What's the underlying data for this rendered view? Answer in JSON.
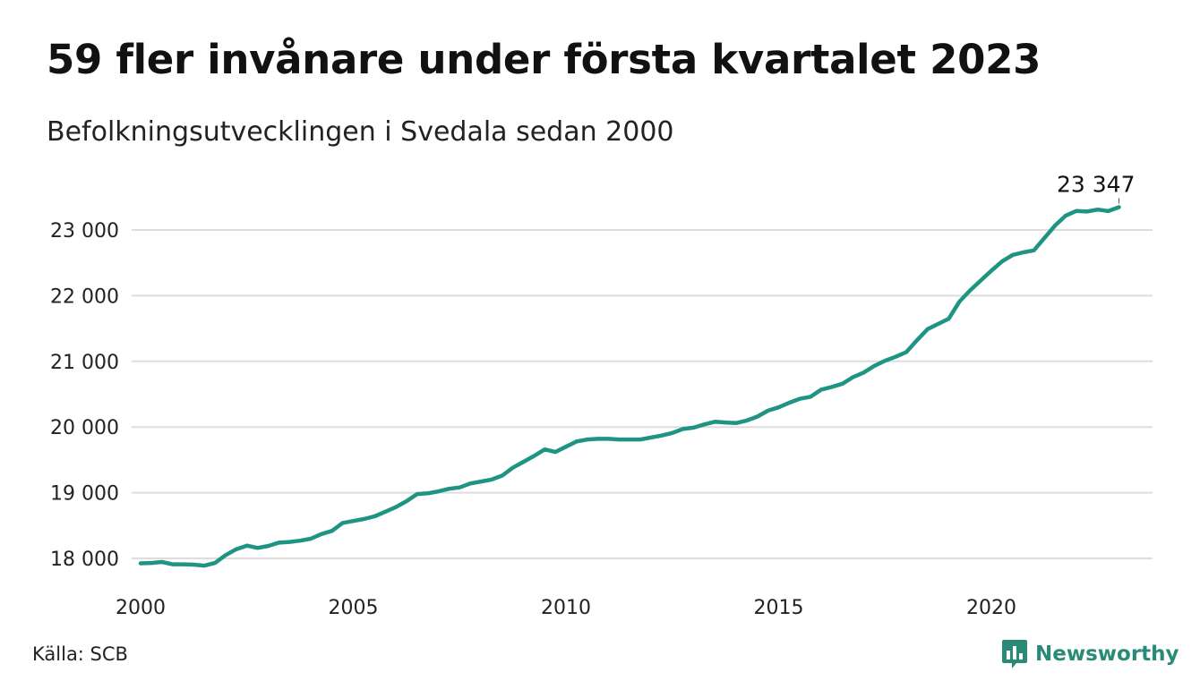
{
  "header": {
    "title": "59 fler invånare under första kvartalet 2023",
    "subtitle": "Befolkningsutvecklingen i Svedala sedan 2000"
  },
  "footer": {
    "source": "Källa: SCB",
    "brand": "Newsworthy",
    "brand_color": "#2a8a78",
    "brand_icon": "bar-chart-speech-bubble-icon"
  },
  "chart_data": {
    "type": "line",
    "title": "59 fler invånare under första kvartalet 2023",
    "subtitle": "Befolkningsutvecklingen i Svedala sedan 2000",
    "xlabel": "",
    "ylabel": "",
    "x_range": [
      2000,
      2024
    ],
    "ylim": [
      17750,
      23400
    ],
    "x_ticks": [
      2000,
      2005,
      2010,
      2015,
      2020
    ],
    "x_tick_labels": [
      "2000",
      "2005",
      "2010",
      "2015",
      "2020"
    ],
    "y_ticks": [
      18000,
      19000,
      20000,
      21000,
      22000,
      23000
    ],
    "y_tick_labels": [
      "18 000",
      "19 000",
      "20 000",
      "21 000",
      "22 000",
      "23 000"
    ],
    "grid": true,
    "line_color": "#1f9482",
    "end_label": "23 347",
    "series": [
      {
        "x": [
          2000.0,
          2000.25,
          2000.5,
          2000.75,
          2001.0,
          2001.25,
          2001.5,
          2001.75,
          2002.0,
          2002.25,
          2002.5,
          2002.75,
          2003.0,
          2003.25,
          2003.5,
          2003.75,
          2004.0,
          2004.25,
          2004.5,
          2004.75,
          2005.0,
          2005.25,
          2005.5,
          2005.75,
          2006.0,
          2006.25,
          2006.5,
          2006.75,
          2007.0,
          2007.25,
          2007.5,
          2007.75,
          2008.0,
          2008.25,
          2008.5,
          2008.75,
          2009.0,
          2009.25,
          2009.5,
          2009.75,
          2010.0,
          2010.25,
          2010.5,
          2010.75,
          2011.0,
          2011.25,
          2011.5,
          2011.75,
          2012.0,
          2012.25,
          2012.5,
          2012.75,
          2013.0,
          2013.25,
          2013.5,
          2013.75,
          2014.0,
          2014.25,
          2014.5,
          2014.75,
          2015.0,
          2015.25,
          2015.5,
          2015.75,
          2016.0,
          2016.25,
          2016.5,
          2016.75,
          2017.0,
          2017.25,
          2017.5,
          2017.75,
          2018.0,
          2018.25,
          2018.5,
          2018.75,
          2019.0,
          2019.25,
          2019.5,
          2019.75,
          2020.0,
          2020.25,
          2020.5,
          2020.75,
          2021.0,
          2021.25,
          2021.5,
          2021.75,
          2022.0,
          2022.25,
          2022.5,
          2022.75,
          2023.0
        ],
        "y": [
          17925,
          17930,
          17945,
          17910,
          17910,
          17905,
          17890,
          17930,
          18050,
          18140,
          18195,
          18160,
          18190,
          18240,
          18250,
          18270,
          18300,
          18370,
          18420,
          18540,
          18570,
          18600,
          18640,
          18710,
          18780,
          18870,
          18980,
          18990,
          19020,
          19060,
          19080,
          19140,
          19170,
          19200,
          19260,
          19380,
          19470,
          19560,
          19660,
          19620,
          19700,
          19780,
          19810,
          19820,
          19820,
          19810,
          19810,
          19810,
          19840,
          19870,
          19910,
          19970,
          19990,
          20040,
          20080,
          20070,
          20060,
          20100,
          20160,
          20250,
          20300,
          20370,
          20430,
          20460,
          20570,
          20610,
          20660,
          20760,
          20830,
          20930,
          21010,
          21070,
          21140,
          21320,
          21490,
          21570,
          21650,
          21910,
          22080,
          22230,
          22380,
          22520,
          22620,
          22660,
          22690,
          22880,
          23070,
          23220,
          23290,
          23280,
          23310,
          23288,
          23347
        ]
      }
    ]
  }
}
